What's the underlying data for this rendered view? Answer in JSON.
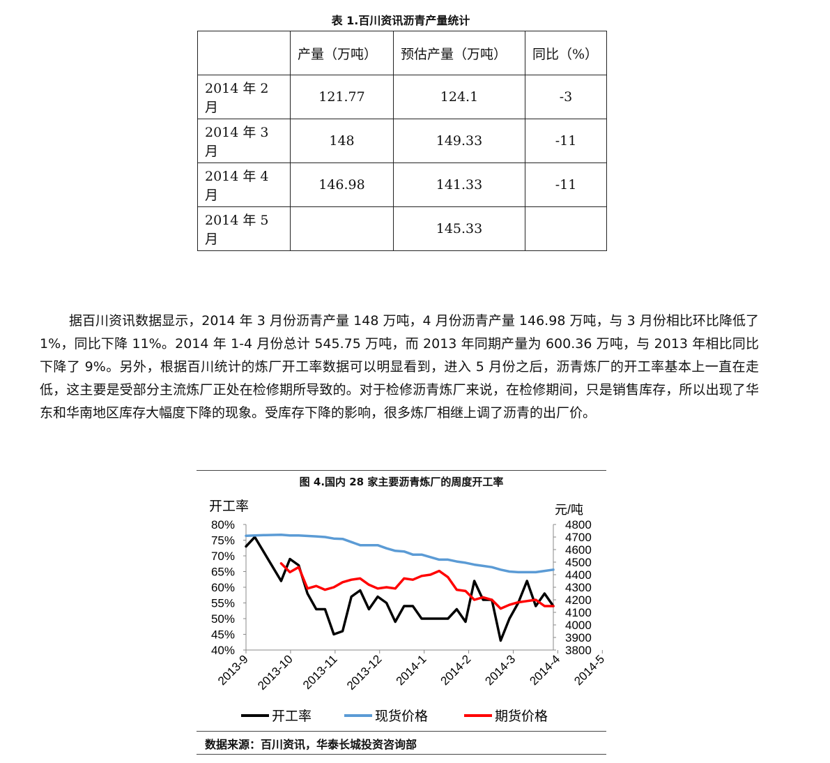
{
  "table": {
    "caption": "表 1.百川资讯沥青产量统计",
    "headers": [
      "",
      "产量（万吨）",
      "预估产量（万吨）",
      "同比（%）"
    ],
    "rows": [
      [
        "2014 年 2 月",
        "121.77",
        "124.1",
        "-3"
      ],
      [
        "2014 年 3 月",
        "148",
        "149.33",
        "-11"
      ],
      [
        "2014 年 4 月",
        "146.98",
        "141.33",
        "-11"
      ],
      [
        "2014 年 5 月",
        "",
        "145.33",
        ""
      ]
    ]
  },
  "paragraph": "据百川资讯数据显示，2014 年 3 月份沥青产量 148 万吨，4 月份沥青产量 146.98 万吨，与 3 月份相比环比降低了 1%，同比下降 11%。2014 年 1-4 月份总计 545.75 万吨，而 2013 年同期产量为 600.36 万吨，与 2013 年相比同比下降了 9%。另外，根据百川统计的炼厂开工率数据可以明显看到，进入 5 月份之后，沥青炼厂的开工率基本上一直在走低，这主要是受部分主流炼厂正处在检修期所导致的。对于检修沥青炼厂来说，在检修期间，只是销售库存，所以出现了华东和华南地区库存大幅度下降的现象。受库存下降的影响，很多炼厂相继上调了沥青的出厂价。",
  "figure": {
    "title": "图 4.国内 28 家主要沥青炼厂的周度开工率",
    "source": "数据来源：百川资讯，华泰长城投资咨询部"
  },
  "chart_data": {
    "type": "line",
    "ylabel_left": "开工率",
    "ylabel_right": "元/吨",
    "y_left_ticks": [
      "80%",
      "75%",
      "70%",
      "65%",
      "60%",
      "55%",
      "50%",
      "45%",
      "40%"
    ],
    "y_right_ticks": [
      "4800",
      "4700",
      "4600",
      "4500",
      "4400",
      "4300",
      "4200",
      "4100",
      "4000",
      "3900",
      "3800"
    ],
    "ylim_left": [
      40,
      80
    ],
    "ylim_right": [
      3800,
      4800
    ],
    "x_ticks": [
      "2013-9",
      "2013-10",
      "2013-11",
      "2013-12",
      "2014-1",
      "2014-2",
      "2014-3",
      "2014-4",
      "2014-5"
    ],
    "x_range_weeks": [
      0,
      35
    ],
    "series": [
      {
        "name": "开工率",
        "axis": "left",
        "color": "#000000",
        "x": [
          0,
          1,
          4,
          5,
          6,
          7,
          8,
          9,
          10,
          11,
          12,
          13,
          14,
          15,
          16,
          17,
          18,
          19,
          20,
          21,
          22,
          23,
          24,
          25,
          26,
          27,
          28,
          29,
          30,
          31,
          32,
          33,
          34,
          35
        ],
        "y": [
          73,
          76,
          62,
          69,
          67,
          58,
          53,
          53,
          45,
          46,
          57,
          59,
          53,
          57,
          55,
          49,
          54,
          54,
          50,
          50,
          50,
          50,
          53,
          49,
          62,
          56,
          56,
          43,
          50,
          55,
          62,
          54,
          58,
          54
        ]
      },
      {
        "name": "现货价格",
        "axis": "right",
        "color": "#5B9BD5",
        "x": [
          0,
          2,
          4,
          5,
          6,
          8,
          9,
          10,
          11,
          12,
          13,
          14,
          15,
          16,
          17,
          18,
          19,
          20,
          21,
          22,
          23,
          24,
          25,
          26,
          27,
          28,
          29,
          30,
          31,
          32,
          33,
          34,
          35
        ],
        "y": [
          4710,
          4715,
          4718,
          4712,
          4712,
          4705,
          4700,
          4688,
          4685,
          4660,
          4635,
          4635,
          4635,
          4610,
          4590,
          4585,
          4560,
          4560,
          4540,
          4520,
          4520,
          4505,
          4495,
          4480,
          4470,
          4460,
          4440,
          4425,
          4420,
          4420,
          4420,
          4430,
          4440
        ]
      },
      {
        "name": "期货价格",
        "axis": "right",
        "color": "#FF0000",
        "x": [
          4,
          5,
          6,
          7,
          8,
          9,
          10,
          11,
          12,
          13,
          14,
          15,
          16,
          17,
          18,
          19,
          20,
          21,
          22,
          23,
          24,
          25,
          26,
          27,
          28,
          29,
          30,
          31,
          32,
          33,
          34,
          35
        ],
        "y": [
          4490,
          4420,
          4460,
          4290,
          4310,
          4280,
          4300,
          4340,
          4360,
          4370,
          4320,
          4290,
          4300,
          4290,
          4370,
          4360,
          4390,
          4400,
          4430,
          4380,
          4280,
          4270,
          4200,
          4220,
          4200,
          4130,
          4160,
          4180,
          4190,
          4200,
          4150,
          4150
        ]
      }
    ],
    "legend_position": "bottom"
  }
}
